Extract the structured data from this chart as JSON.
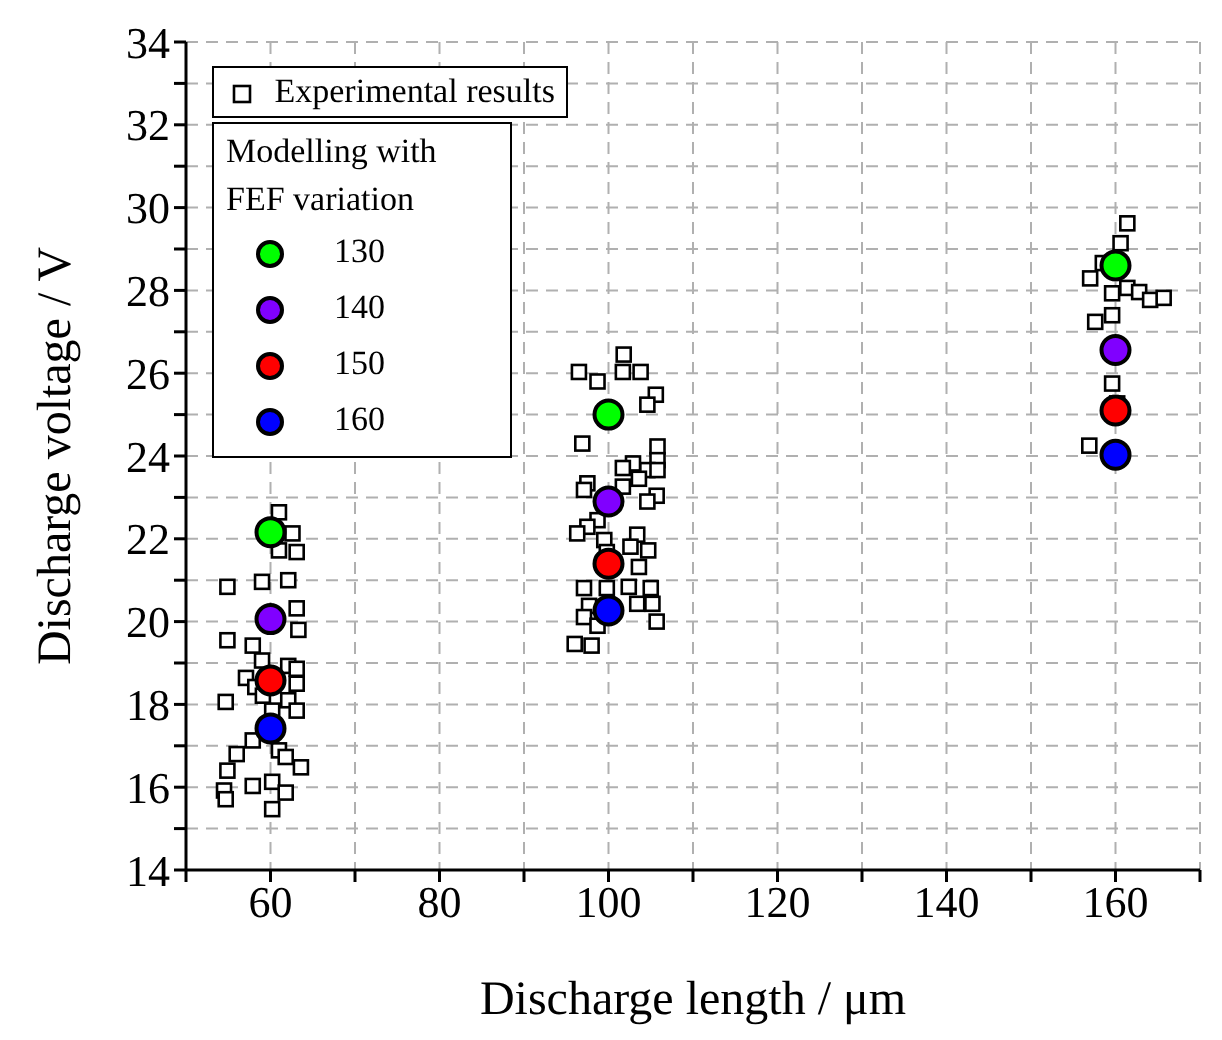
{
  "chart_data": {
    "type": "scatter",
    "xlabel": "Discharge length / μm",
    "ylabel": "Discharge voltage / V",
    "legend_title": "Modelling with FEF variation",
    "legend": "top left",
    "grid": true,
    "xlim": [
      50,
      170
    ],
    "xticks": [
      {
        "value": 50,
        "label": null
      },
      60,
      {
        "value": 70,
        "label": null
      },
      80,
      {
        "value": 90,
        "label": null
      },
      100,
      {
        "value": 110,
        "label": null
      },
      120,
      {
        "value": 130,
        "label": null
      },
      140,
      {
        "value": 150,
        "label": null
      },
      160,
      {
        "value": 170,
        "label": null
      }
    ],
    "ylim": [
      14,
      34
    ],
    "yticks": [
      14,
      {
        "value": 15,
        "label": null
      },
      16,
      {
        "value": 17,
        "label": null
      },
      18,
      {
        "value": 19,
        "label": null
      },
      20,
      {
        "value": 21,
        "label": null
      },
      22,
      {
        "value": 23,
        "label": null
      },
      24,
      {
        "value": 25,
        "label": null
      },
      26,
      {
        "value": 27,
        "label": null
      },
      28,
      {
        "value": 29,
        "label": null
      },
      30,
      {
        "value": 31,
        "label": null
      },
      32,
      {
        "value": 33,
        "label": null
      },
      34
    ],
    "series": [
      {
        "name": "Experimental results",
        "color": "#000000",
        "marker": "square",
        "x": [
          61.0,
          62.6,
          61.0,
          63.1,
          54.9,
          59.0,
          62.1,
          63.1,
          63.3,
          54.9,
          57.9,
          59.0,
          62.1,
          63.1,
          57.1,
          58.2,
          63.1,
          59.1,
          54.7,
          62.1,
          63.1,
          60.2,
          57.9,
          56.0,
          61.0,
          61.8,
          54.9,
          63.6,
          54.5,
          54.7,
          57.9,
          60.2,
          61.8,
          60.2,
          101.8,
          96.5,
          98.7,
          101.7,
          103.8,
          105.6,
          104.6,
          96.9,
          105.8,
          105.8,
          102.9,
          101.7,
          104.6,
          105.8,
          103.6,
          97.5,
          97.1,
          101.7,
          105.7,
          104.6,
          98.7,
          97.5,
          96.3,
          99.5,
          103.4,
          102.6,
          104.7,
          99.8,
          103.6,
          97.1,
          99.8,
          102.4,
          105.0,
          97.7,
          103.4,
          105.2,
          97.1,
          98.7,
          105.7,
          96.0,
          98.0,
          161.4,
          160.6,
          158.5,
          157.0,
          159.6,
          161.4,
          162.8,
          164.1,
          165.7,
          157.6,
          159.6,
          159.6,
          160.2,
          156.9
        ],
        "values": [
          22.64,
          22.13,
          21.72,
          21.68,
          20.84,
          20.96,
          21.0,
          20.32,
          19.8,
          19.55,
          19.42,
          19.06,
          18.93,
          18.86,
          18.64,
          18.42,
          18.5,
          18.21,
          18.06,
          18.1,
          17.85,
          17.85,
          17.13,
          16.8,
          16.89,
          16.73,
          16.4,
          16.48,
          15.92,
          15.71,
          16.03,
          16.13,
          15.87,
          15.47,
          26.45,
          26.03,
          25.8,
          26.03,
          26.03,
          25.48,
          25.24,
          24.3,
          24.23,
          23.9,
          23.82,
          23.71,
          23.66,
          23.66,
          23.45,
          23.34,
          23.18,
          23.26,
          23.04,
          22.9,
          22.45,
          22.29,
          22.13,
          21.97,
          22.1,
          21.81,
          21.72,
          21.68,
          21.32,
          20.81,
          20.81,
          20.84,
          20.81,
          20.38,
          20.43,
          20.43,
          20.11,
          19.9,
          20.0,
          19.46,
          19.42,
          29.62,
          29.14,
          28.66,
          28.29,
          27.93,
          28.06,
          27.96,
          27.77,
          27.82,
          27.24,
          27.4,
          25.75,
          25.27,
          24.25
        ]
      },
      {
        "name": "130",
        "color": "#00ff00",
        "marker": "circle",
        "x": [
          60,
          100,
          160
        ],
        "values": [
          22.16,
          25.0,
          28.6
        ]
      },
      {
        "name": "140",
        "color": "#8000ff",
        "marker": "circle",
        "x": [
          60,
          100,
          160
        ],
        "values": [
          20.06,
          22.9,
          26.56
        ]
      },
      {
        "name": "150",
        "color": "#ff0000",
        "marker": "circle",
        "x": [
          60,
          100,
          160
        ],
        "values": [
          18.58,
          21.4,
          25.1
        ]
      },
      {
        "name": "160",
        "color": "#0000ff",
        "marker": "circle",
        "x": [
          60,
          100,
          160
        ],
        "values": [
          17.42,
          20.27,
          24.03
        ]
      }
    ]
  }
}
